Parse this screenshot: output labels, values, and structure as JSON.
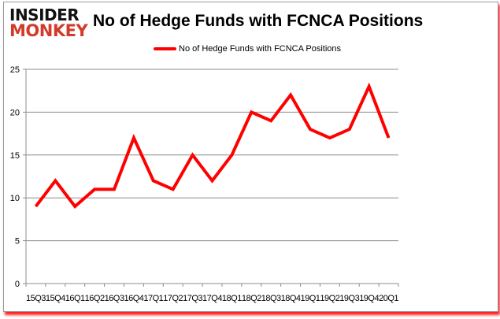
{
  "logo": {
    "line1": "INSIDER",
    "line2": "MONKEY"
  },
  "chart_data": {
    "type": "line",
    "title": "No of Hedge Funds with FCNCA Positions",
    "xlabel": "",
    "ylabel": "",
    "categories": [
      "15Q3",
      "15Q4",
      "16Q1",
      "16Q2",
      "16Q3",
      "16Q4",
      "17Q1",
      "17Q2",
      "17Q3",
      "17Q4",
      "18Q1",
      "18Q2",
      "18Q3",
      "18Q4",
      "19Q1",
      "19Q2",
      "19Q3",
      "19Q4",
      "20Q1"
    ],
    "series": [
      {
        "name": "No of Hedge Funds with FCNCA Positions",
        "color": "#ff0000",
        "values": [
          9,
          12,
          9,
          11,
          11,
          17,
          12,
          11,
          15,
          12,
          15,
          20,
          19,
          22,
          18,
          17,
          18,
          23,
          17
        ]
      }
    ],
    "ylim": [
      0,
      25
    ],
    "yticks": [
      0,
      5,
      10,
      15,
      20,
      25
    ],
    "grid": true,
    "legend": "top-center"
  }
}
